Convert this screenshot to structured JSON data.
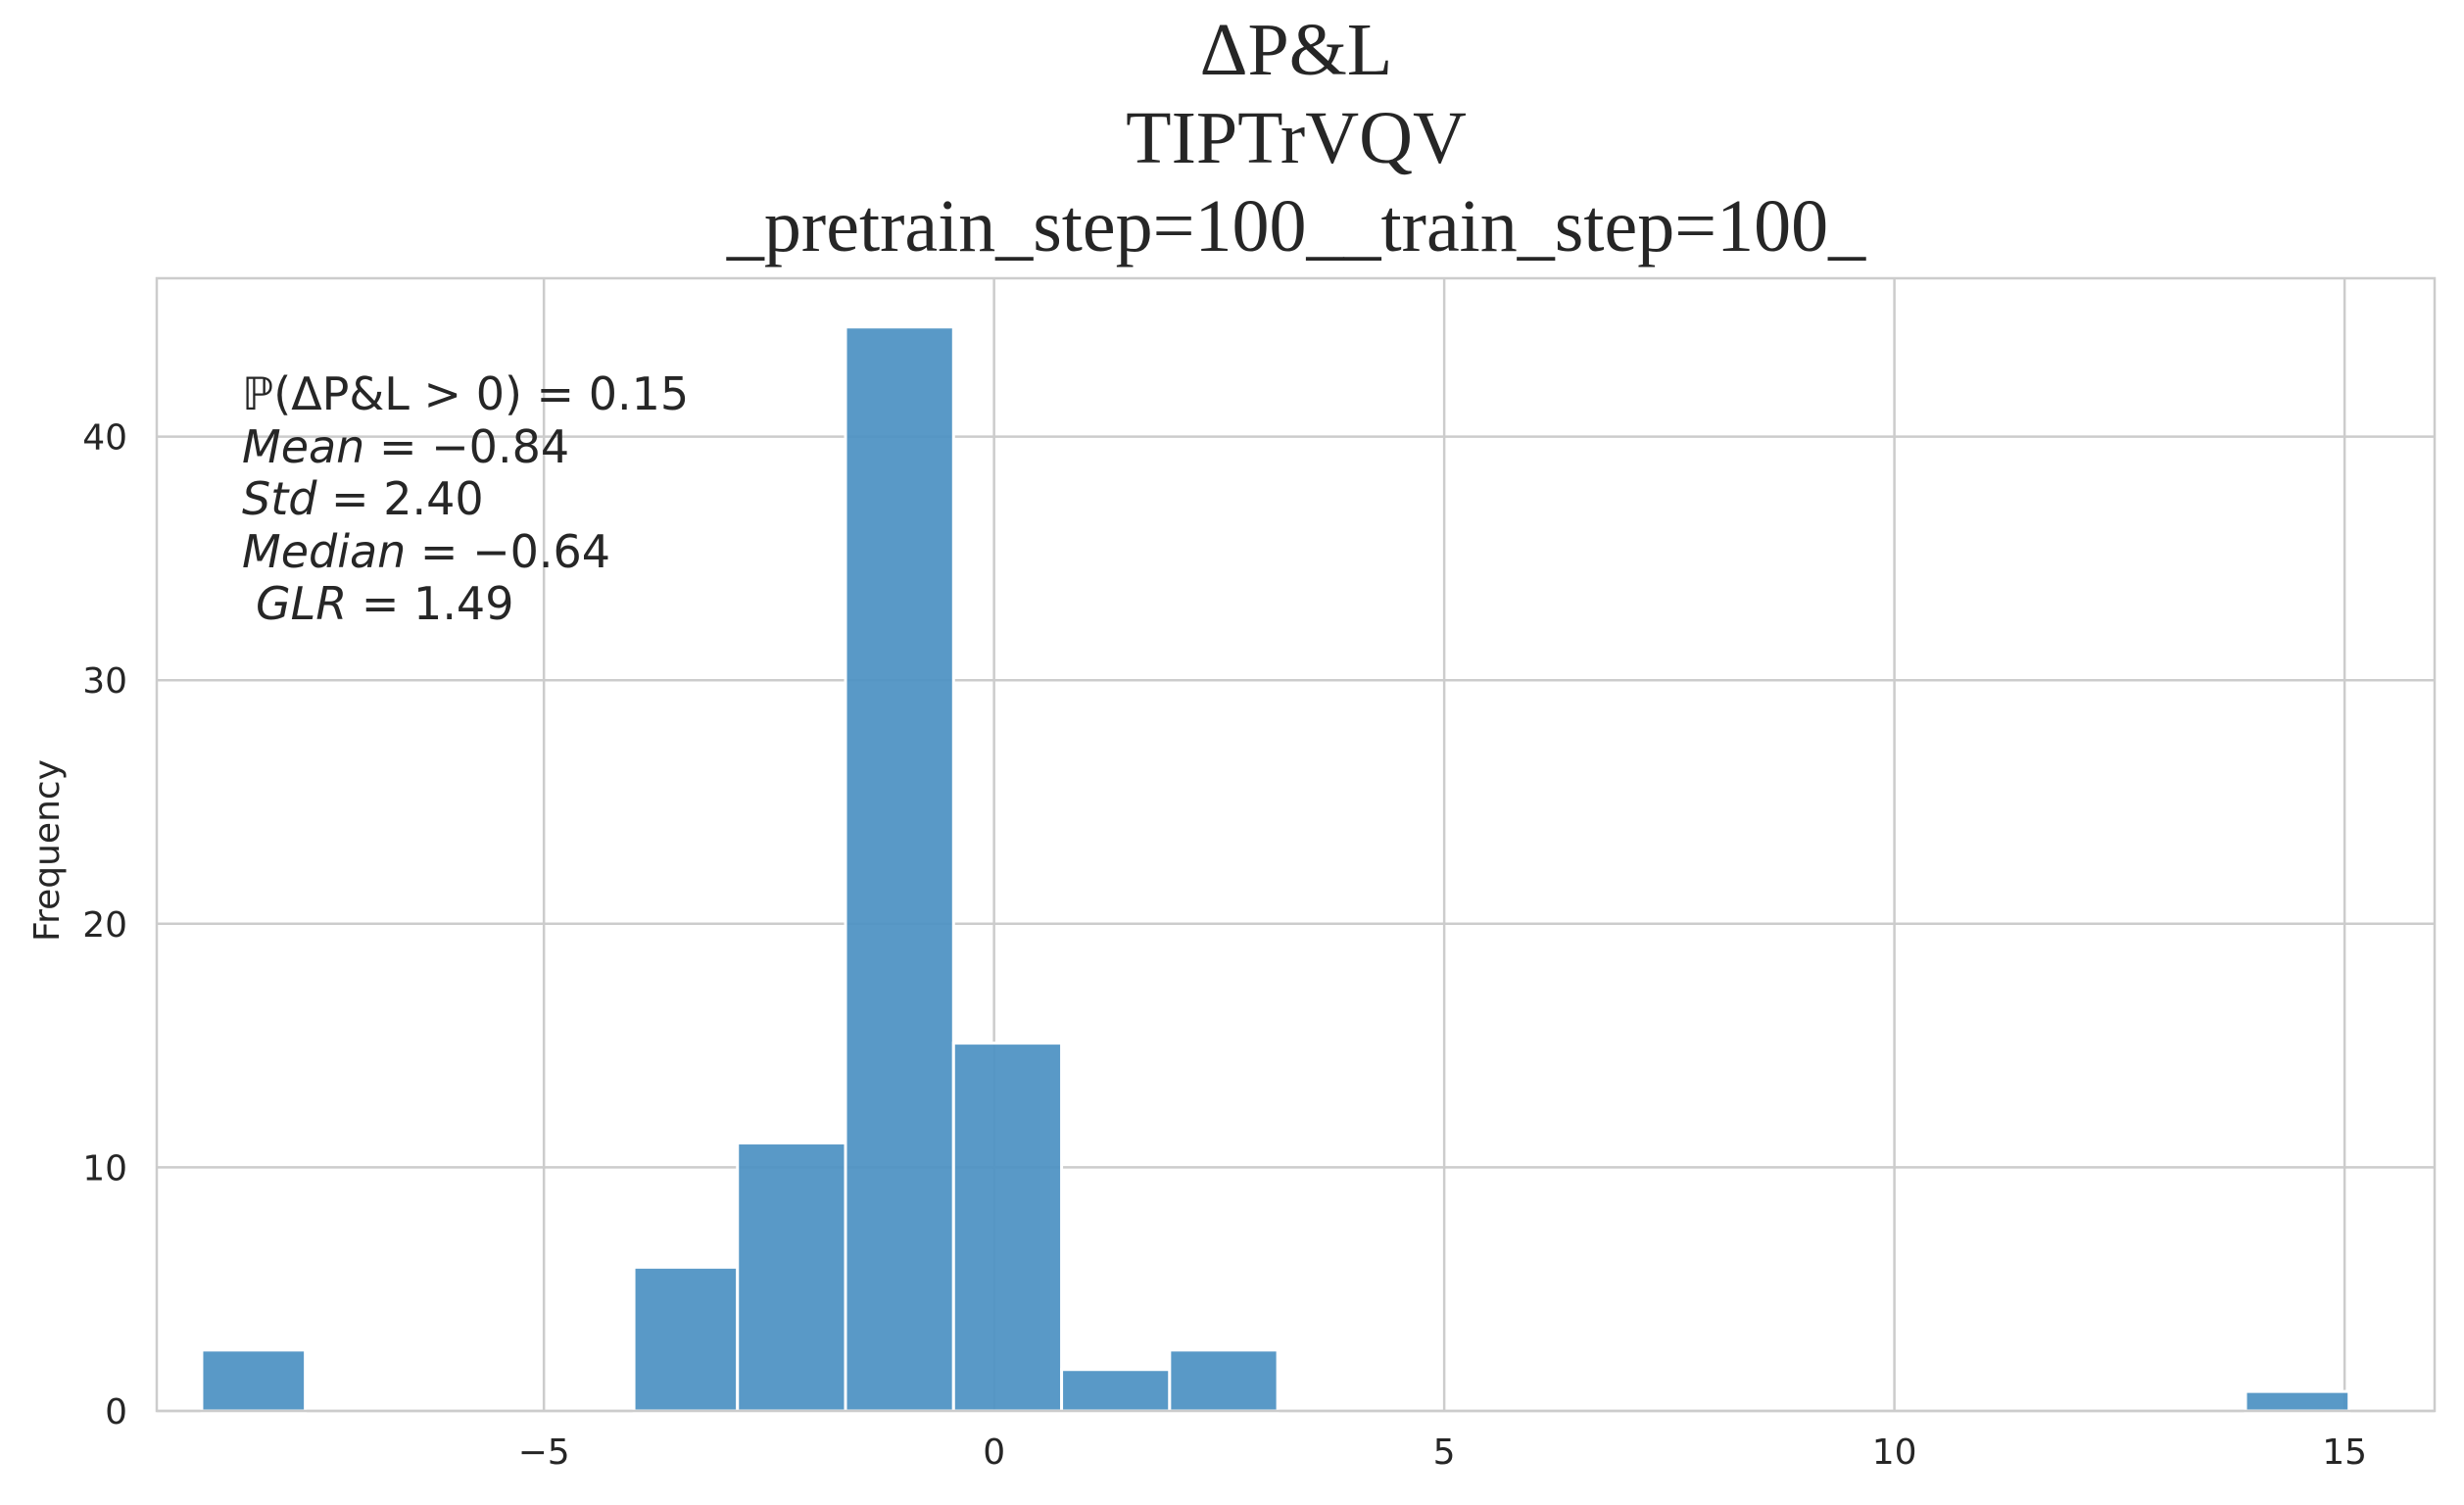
{
  "chart_data": {
    "type": "bar",
    "title_lines": [
      "ΔP&L",
      "TIPTrVQV",
      "_pretrain_step=100__train_step=100_"
    ],
    "xlabel": "",
    "ylabel": "Frequency",
    "xlim": [
      -9.3,
      16.0
    ],
    "ylim": [
      0,
      46.5
    ],
    "x_ticks": [
      -5,
      0,
      5,
      10,
      15
    ],
    "x_tick_labels": [
      "−5",
      "0",
      "5",
      "10",
      "15"
    ],
    "y_ticks": [
      0,
      10,
      20,
      30,
      40
    ],
    "y_tick_labels": [
      "0",
      "10",
      "20",
      "30",
      "40"
    ],
    "grid": true,
    "bar_color": "#4c91c3",
    "bins": [
      {
        "x0": -8.8,
        "x1": -7.65,
        "value": 2.5
      },
      {
        "x0": -4.0,
        "x1": -2.85,
        "value": 5.9
      },
      {
        "x0": -2.85,
        "x1": -1.65,
        "value": 11.0
      },
      {
        "x0": -1.65,
        "x1": -0.45,
        "value": 44.5
      },
      {
        "x0": -0.45,
        "x1": 0.75,
        "value": 15.1
      },
      {
        "x0": 0.75,
        "x1": 1.95,
        "value": 1.7
      },
      {
        "x0": 1.95,
        "x1": 3.15,
        "value": 2.5
      },
      {
        "x0": 13.9,
        "x1": 15.05,
        "value": 0.8
      }
    ],
    "annotations": {
      "p_label": "ℙ(ΔP&L > 0)",
      "p_value": "0.15",
      "mean_label": "Mean",
      "mean_value": "−0.84",
      "std_label": "Std",
      "std_value": "2.40",
      "median_label": "Median",
      "median_value": "−0.64",
      "glr_label": "GLR",
      "glr_value": "1.49"
    }
  }
}
